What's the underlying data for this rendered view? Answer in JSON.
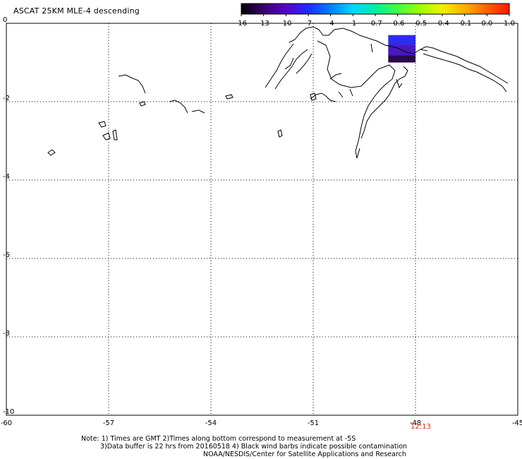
{
  "header": {
    "title": "ASCAT 25KM MLE-4 descending"
  },
  "colorbar": {
    "ticks": [
      "-16",
      "-13",
      "-10",
      "-7",
      "-4",
      "-1",
      "-0.7",
      "-0.6",
      "-0.5",
      "-0.4",
      "-0.1",
      "0.0",
      "1.0"
    ],
    "colors": [
      "#000000",
      "#3a0070",
      "#5a00c8",
      "#1a2cff",
      "#0080ff",
      "#00d8ff",
      "#00f0a0",
      "#40ff40",
      "#a0ff00",
      "#f0f000",
      "#ffb000",
      "#ff6000",
      "#ff1800"
    ]
  },
  "time_label": "12:13",
  "notes": {
    "line1": "Note: 1) Times are GMT 2)Times along bottom correspond to measurement at -5S",
    "line2": "3)Data buffer is 22 hrs from 20160518 4) Black wind barbs indicate possible contamination",
    "line3": "NOAA/NESDIS/Center for Satellite Applications and Research"
  },
  "chart_data": {
    "type": "heatmap",
    "title": "ASCAT 25KM MLE-4 descending",
    "xlabel": "",
    "ylabel": "",
    "xlim": [
      -60,
      -45
    ],
    "ylim": [
      -10,
      0
    ],
    "x_ticks": [
      -60,
      -57,
      -54,
      -51,
      -48,
      -45
    ],
    "x_tick_labels": [
      "-60",
      "-57",
      "-54",
      "-51",
      "-48",
      "-45"
    ],
    "y_ticks": [
      0,
      -2,
      -4,
      -6,
      -8,
      -10
    ],
    "y_tick_labels": [
      "0",
      "-2",
      "-4",
      "-6",
      "-8",
      "-10"
    ],
    "grid": true,
    "colorbar_range": [
      -16,
      1.0
    ],
    "data_region": {
      "lon": [
        -48.8,
        -48.0
      ],
      "lat": [
        -1.0,
        -0.3
      ]
    },
    "cells": [
      {
        "lon": -48.8,
        "lat": -0.3,
        "dlon": 0.8,
        "dlat": 0.25,
        "value": -7,
        "color": "#2a2cf0"
      },
      {
        "lon": -48.8,
        "lat": -0.55,
        "dlon": 0.8,
        "dlat": 0.27,
        "value": -10,
        "color": "#4a18c0"
      },
      {
        "lon": -48.8,
        "lat": -0.82,
        "dlon": 0.8,
        "dlat": 0.18,
        "value": -13,
        "color": "#2a0a4a"
      }
    ]
  }
}
